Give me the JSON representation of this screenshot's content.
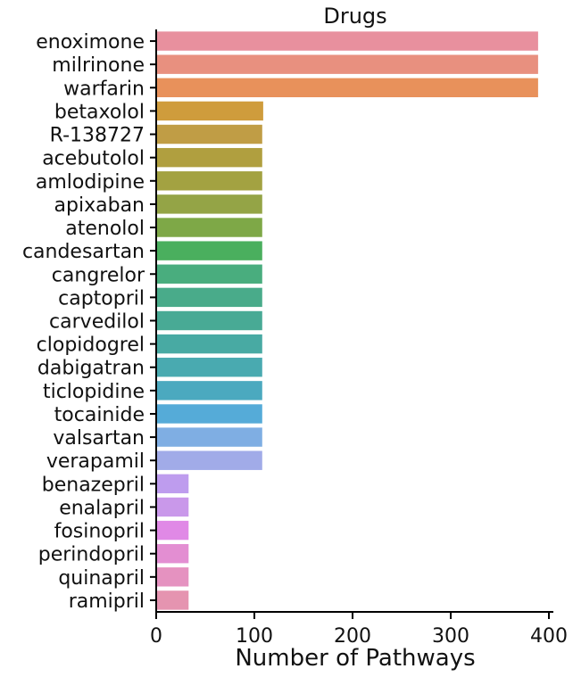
{
  "chart_data": {
    "type": "bar",
    "orientation": "horizontal",
    "title": "Drugs",
    "xlabel": "Number of Pathways",
    "ylabel": "",
    "xlim": [
      0,
      410
    ],
    "xticks": [
      0,
      100,
      200,
      300,
      400
    ],
    "grid": false,
    "legend": "none",
    "categories": [
      "enoximone",
      "milrinone",
      "warfarin",
      "betaxolol",
      "R-138727",
      "acebutolol",
      "amlodipine",
      "apixaban",
      "atenolol",
      "candesartan",
      "cangrelor",
      "captopril",
      "carvedilol",
      "clopidogrel",
      "dabigatran",
      "ticlopidine",
      "tocainide",
      "valsartan",
      "verapamil",
      "benazepril",
      "enalapril",
      "fosinopril",
      "perindopril",
      "quinapril",
      "ramipril"
    ],
    "values": [
      389,
      389,
      389,
      109,
      108,
      108,
      108,
      108,
      108,
      108,
      108,
      108,
      108,
      108,
      108,
      108,
      108,
      108,
      108,
      33,
      33,
      33,
      33,
      33,
      33
    ],
    "colors": [
      "#e8909e",
      "#e8907f",
      "#e8915b",
      "#cf9c3c",
      "#c09d45",
      "#b09f3f",
      "#a3a241",
      "#94a446",
      "#7ea847",
      "#4aaf5e",
      "#49ad7e",
      "#49ab8a",
      "#48aa95",
      "#48aaa3",
      "#49aab0",
      "#4ba9bf",
      "#55abd8",
      "#7faee3",
      "#a1abe8",
      "#be9cee",
      "#c998ea",
      "#e089e6",
      "#e38ed2",
      "#e592c0",
      "#e594b0"
    ]
  }
}
